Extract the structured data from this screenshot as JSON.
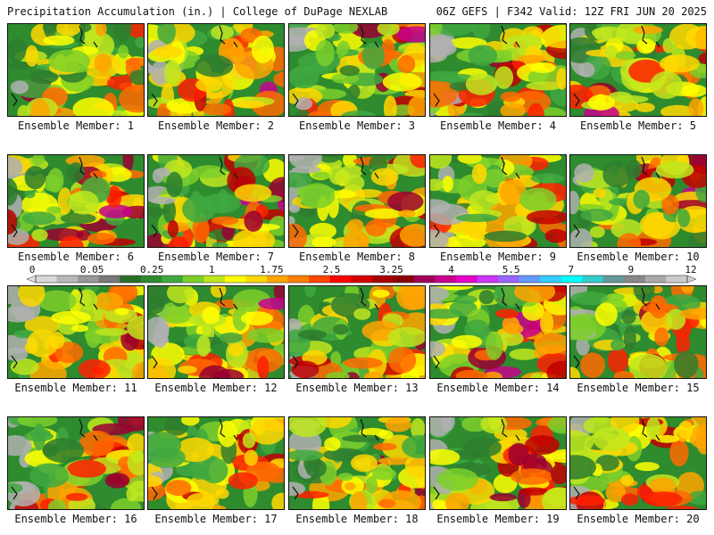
{
  "header": {
    "left": "Precipitation Accumulation (in.) | College of DuPage NEXLAB",
    "right": "06Z GEFS | F342 Valid: 12Z FRI JUN 20 2025"
  },
  "caption_prefix": "Ensemble Member:",
  "members": [
    {
      "label": "Ensemble Member: 1"
    },
    {
      "label": "Ensemble Member: 2"
    },
    {
      "label": "Ensemble Member: 3"
    },
    {
      "label": "Ensemble Member: 4"
    },
    {
      "label": "Ensemble Member: 5"
    },
    {
      "label": "Ensemble Member: 6"
    },
    {
      "label": "Ensemble Member: 7"
    },
    {
      "label": "Ensemble Member: 8"
    },
    {
      "label": "Ensemble Member: 9"
    },
    {
      "label": "Ensemble Member: 10"
    },
    {
      "label": "Ensemble Member: 11"
    },
    {
      "label": "Ensemble Member: 12"
    },
    {
      "label": "Ensemble Member: 13"
    },
    {
      "label": "Ensemble Member: 14"
    },
    {
      "label": "Ensemble Member: 15"
    },
    {
      "label": "Ensemble Member: 16"
    },
    {
      "label": "Ensemble Member: 17"
    },
    {
      "label": "Ensemble Member: 18"
    },
    {
      "label": "Ensemble Member: 19"
    },
    {
      "label": "Ensemble Member: 20"
    }
  ],
  "colorbar": {
    "tick_labels": [
      "0",
      "0.05",
      "0.25",
      "1",
      "1.75",
      "2.5",
      "3.25",
      "4",
      "5.5",
      "7",
      "9",
      "12"
    ],
    "colors": [
      "#d8d8d8",
      "#b8b8b8",
      "#989898",
      "#787878",
      "#2a6e2a",
      "#2e8b2e",
      "#3fa83f",
      "#7ccf2a",
      "#bfe61e",
      "#ffff00",
      "#ffd700",
      "#ffa500",
      "#ff7f00",
      "#ff4500",
      "#ff0000",
      "#d40000",
      "#a80000",
      "#8b0000",
      "#a0005a",
      "#c8008c",
      "#e600c8",
      "#cc33ff",
      "#9966ff",
      "#6699ff",
      "#33ccff",
      "#00ffff",
      "#33cccc",
      "#669999",
      "#888888",
      "#aaaaaa",
      "#cccccc"
    ]
  }
}
